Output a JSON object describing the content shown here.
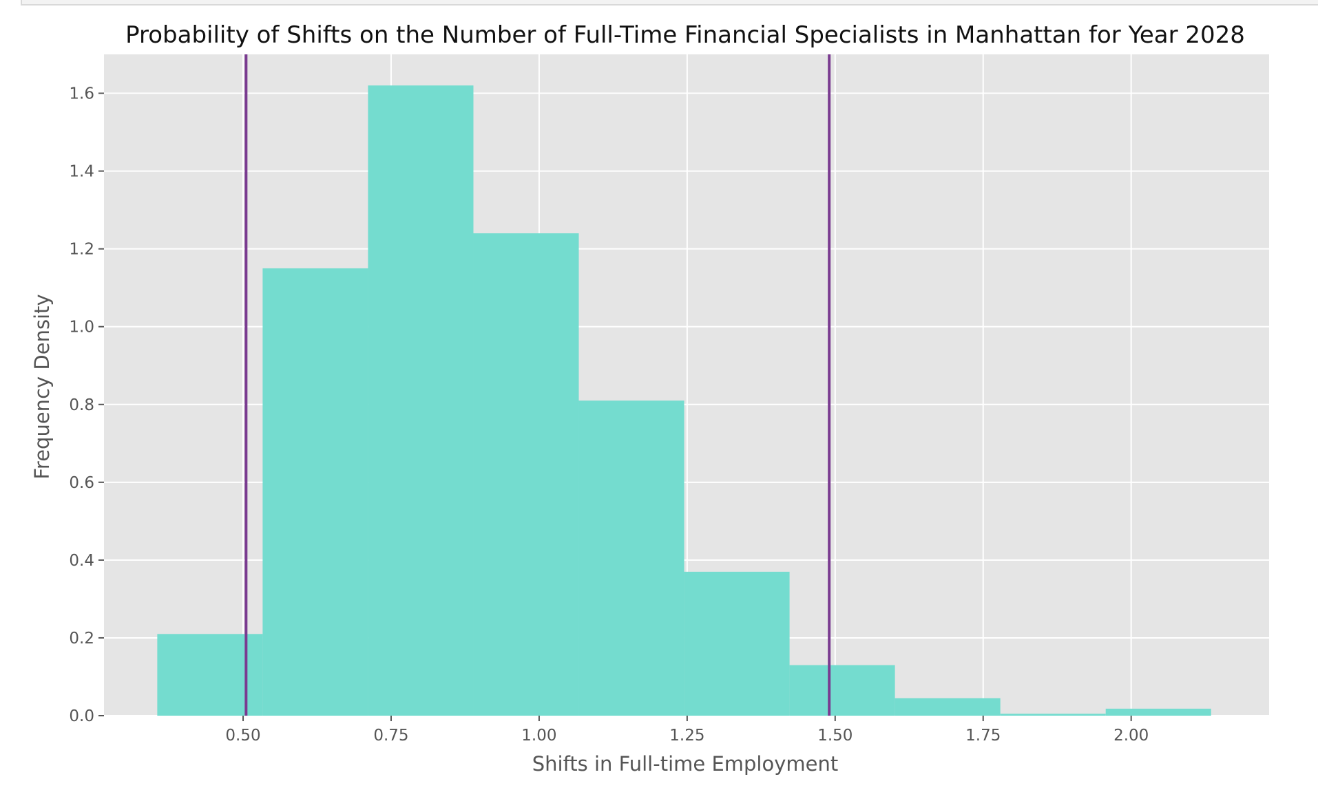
{
  "chart_data": {
    "type": "bar",
    "title": "Probability of Shifts on the Number of Full-Time Financial Specialists in Manhattan for Year 2028",
    "xlabel": "Shifts in Full-time Employment",
    "ylabel": "Frequency Density",
    "xlim": [
      0.265,
      2.233
    ],
    "ylim": [
      0,
      1.7
    ],
    "grid": true,
    "legend": "none",
    "x_ticks": [
      0.5,
      0.75,
      1.0,
      1.25,
      1.5,
      1.75,
      2.0
    ],
    "x_tick_labels": [
      "0.50",
      "0.75",
      "1.00",
      "1.25",
      "1.50",
      "1.75",
      "2.00"
    ],
    "y_ticks": [
      0.0,
      0.2,
      0.4,
      0.6,
      0.8,
      1.0,
      1.2,
      1.4,
      1.6
    ],
    "y_tick_labels": [
      "0.0",
      "0.2",
      "0.4",
      "0.6",
      "0.8",
      "1.0",
      "1.2",
      "1.4",
      "1.6"
    ],
    "bins": [
      {
        "x0": 0.355,
        "x1": 0.533,
        "value": 0.21
      },
      {
        "x0": 0.533,
        "x1": 0.711,
        "value": 1.15
      },
      {
        "x0": 0.711,
        "x1": 0.889,
        "value": 1.62
      },
      {
        "x0": 0.889,
        "x1": 1.067,
        "value": 1.24
      },
      {
        "x0": 1.067,
        "x1": 1.245,
        "value": 0.81
      },
      {
        "x0": 1.245,
        "x1": 1.423,
        "value": 0.37
      },
      {
        "x0": 1.423,
        "x1": 1.601,
        "value": 0.13
      },
      {
        "x0": 1.601,
        "x1": 1.779,
        "value": 0.045
      },
      {
        "x0": 1.779,
        "x1": 1.957,
        "value": 0.005
      },
      {
        "x0": 1.957,
        "x1": 2.135,
        "value": 0.018
      }
    ],
    "vlines": [
      0.505,
      1.49
    ],
    "colors": {
      "bar": "#74dccf",
      "vline": "#7a3b90",
      "plot_bg": "#e5e5e5",
      "grid": "#ffffff",
      "tick_text": "#555555",
      "label_text": "#555555",
      "title_text": "#111111"
    }
  }
}
